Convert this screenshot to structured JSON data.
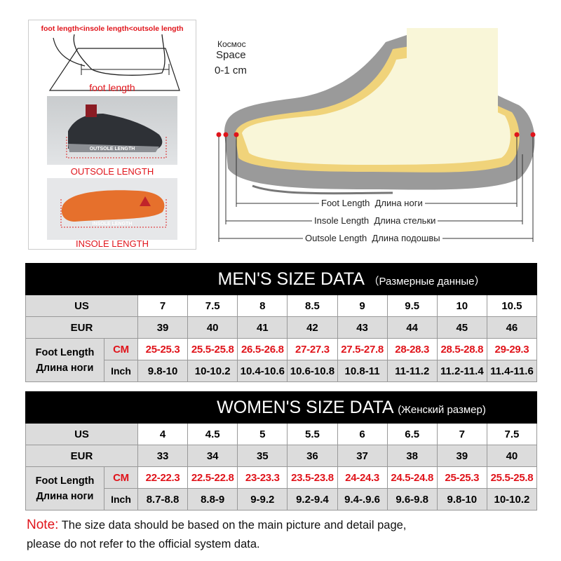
{
  "left_panel": {
    "title": "foot length<insole length<outsole length",
    "foot_caption": "foot length",
    "outsole_photo_label": "OUTSOLE LENGTH",
    "outsole_caption": "OUTSOLE LENGTH",
    "insole_photo_label": "INSOLE LENGTH",
    "insole_caption": "INSOLE LENGTH"
  },
  "diagram": {
    "space_ru": "Космос",
    "space_en": "Space",
    "space_range": "0-1 cm",
    "foot_length_en": "Foot Length",
    "foot_length_ru": "Длина ноги",
    "insole_length_en": "Insole Length",
    "insole_length_ru": "Длина стельки",
    "outsole_length_en": "Outsole Length",
    "outsole_length_ru": "Длина подошвы"
  },
  "men": {
    "title": "MEN'S SIZE DATA",
    "subtitle": "（Размерные данные）",
    "us_label": "US",
    "eur_label": "EUR",
    "foot_label_en": "Foot Length",
    "foot_label_ru": "Длина ноги",
    "cm_label": "CM",
    "inch_label": "Inch",
    "us": [
      "7",
      "7.5",
      "8",
      "8.5",
      "9",
      "9.5",
      "10",
      "10.5"
    ],
    "eur": [
      "39",
      "40",
      "41",
      "42",
      "43",
      "44",
      "45",
      "46"
    ],
    "cm": [
      "25-25.3",
      "25.5-25.8",
      "26.5-26.8",
      "27-27.3",
      "27.5-27.8",
      "28-28.3",
      "28.5-28.8",
      "29-29.3"
    ],
    "inch": [
      "9.8-10",
      "10-10.2",
      "10.4-10.6",
      "10.6-10.8",
      "10.8-11",
      "11-11.2",
      "11.2-11.4",
      "11.4-11.6"
    ]
  },
  "women": {
    "title": "WOMEN'S SIZE DATA",
    "subtitle": "(Женский размер)",
    "us_label": "US",
    "eur_label": "EUR",
    "foot_label_en": "Foot Length",
    "foot_label_ru": "Длина ноги",
    "cm_label": "CM",
    "inch_label": "Inch",
    "us": [
      "4",
      "4.5",
      "5",
      "5.5",
      "6",
      "6.5",
      "7",
      "7.5"
    ],
    "eur": [
      "33",
      "34",
      "35",
      "36",
      "37",
      "38",
      "39",
      "40"
    ],
    "cm": [
      "22-22.3",
      "22.5-22.8",
      "23-23.3",
      "23.5-23.8",
      "24-24.3",
      "24.5-24.8",
      "25-25.3",
      "25.5-25.8"
    ],
    "inch": [
      "8.7-8.8",
      "8.8-9",
      "9-9.2",
      "9.2-9.4",
      "9.4-.9.6",
      "9.6-9.8",
      "9.8-10",
      "10-10.2"
    ]
  },
  "note": {
    "label": "Note:",
    "line1": " The size data should be based on the main picture and detail page,",
    "line2": "please do not refer to the official system data."
  },
  "colors": {
    "accent_red": "#e0141b",
    "header_bg": "#000000",
    "cell_gray": "#dcdcdc"
  }
}
